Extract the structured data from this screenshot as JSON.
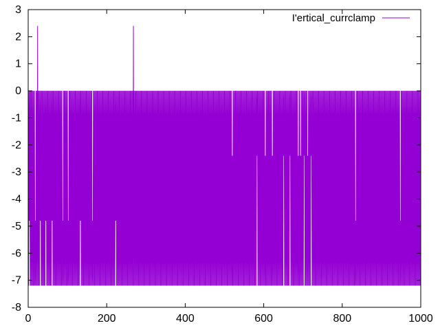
{
  "chart_data": {
    "type": "line",
    "title": "",
    "xlabel": "",
    "ylabel": "",
    "xlim": [
      0,
      1000
    ],
    "ylim": [
      -8,
      3
    ],
    "x_ticks": [
      0,
      200,
      400,
      600,
      800,
      1000
    ],
    "y_ticks": [
      3,
      2,
      1,
      0,
      -1,
      -2,
      -3,
      -4,
      -5,
      -6,
      -7,
      -8
    ],
    "x_tick_labels": [
      "0",
      "200",
      "400",
      "600",
      "800",
      "1000"
    ],
    "y_tick_labels": [
      "3",
      "2",
      "1",
      "0",
      "-1",
      "-2",
      "-3",
      "-4",
      "-5",
      "-6",
      "-7",
      "-8"
    ],
    "grid": false,
    "legend_position": "top-right",
    "series": [
      {
        "name": "I'ertical_currclamp",
        "color": "#9400d3",
        "baseline": 0,
        "low_value": -7.2,
        "mid_value": -4.8,
        "upper_mid_value": -2.4,
        "peak_value": 2.4,
        "sample_count": 1000,
        "spike_x": [
          24,
          268
        ],
        "mid_dip_x": [
          3,
          18,
          31,
          45,
          61,
          88,
          102,
          133,
          164,
          223,
          834,
          948
        ],
        "upper_mid_dip_x": [
          520,
          583,
          604,
          622,
          651,
          667,
          688,
          694,
          703,
          712,
          721
        ]
      }
    ]
  }
}
